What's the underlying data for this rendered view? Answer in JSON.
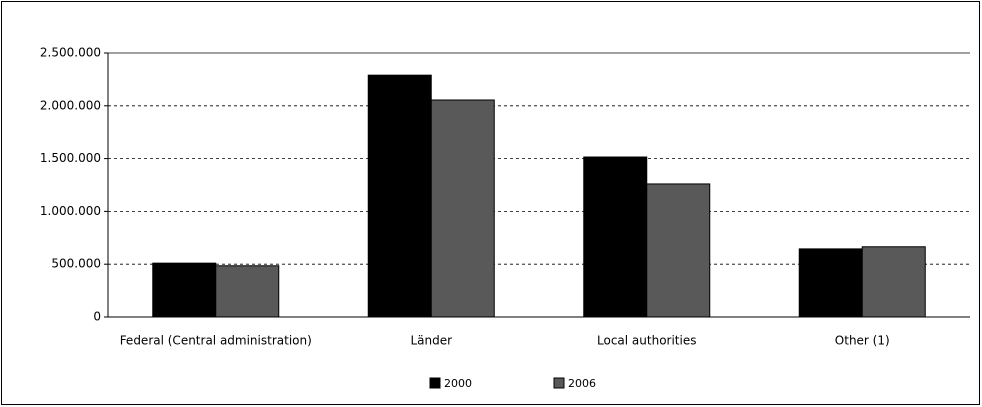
{
  "chart_data": {
    "type": "bar",
    "categories": [
      "Federal (Central administration)",
      "Länder",
      "Local authorities",
      "Other (1)"
    ],
    "series": [
      {
        "name": "2000",
        "color": "#000000",
        "values": [
          510000,
          2290000,
          1515000,
          645000
        ]
      },
      {
        "name": "2006",
        "color": "#595959",
        "values": [
          485000,
          2055000,
          1260000,
          665000
        ]
      }
    ],
    "ylim": [
      0,
      2500000
    ],
    "yticks": [
      0,
      {
        "value": 500000,
        "label": "500.000"
      },
      {
        "value": 1000000,
        "label": "1.000.000"
      },
      {
        "value": 1500000,
        "label": "1.500.000"
      },
      {
        "value": 2000000,
        "label": "2.000.000"
      },
      {
        "value": 2500000,
        "label": "2.500.000"
      }
    ],
    "grid": true,
    "legend": "bottom"
  }
}
